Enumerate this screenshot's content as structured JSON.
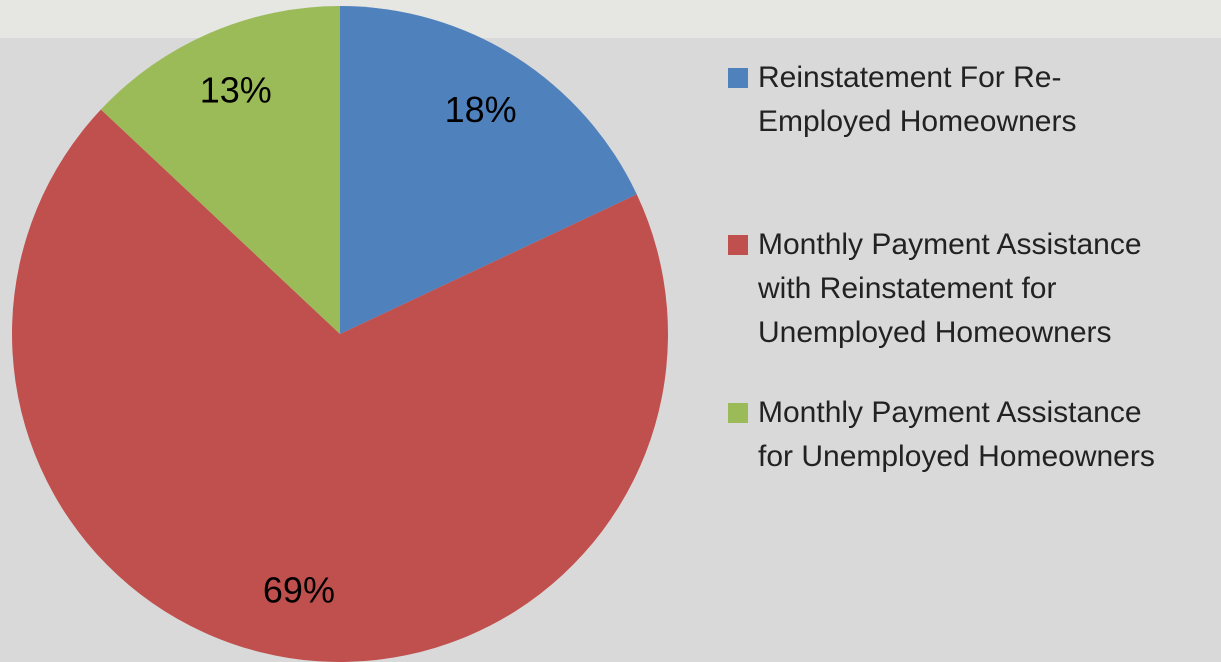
{
  "chart_data": {
    "type": "pie",
    "categories": [
      "Reinstatement For Re-Employed Homeowners",
      "Monthly Payment Assistance with Reinstatement for Unemployed Homeowners",
      "Monthly Payment Assistance for Unemployed Homeowners"
    ],
    "values": [
      18,
      69,
      13
    ],
    "value_labels": [
      "18%",
      "69%",
      "13%"
    ],
    "colors": [
      "#4f81bd",
      "#c0504d",
      "#9bbb59"
    ],
    "legend": "right"
  }
}
